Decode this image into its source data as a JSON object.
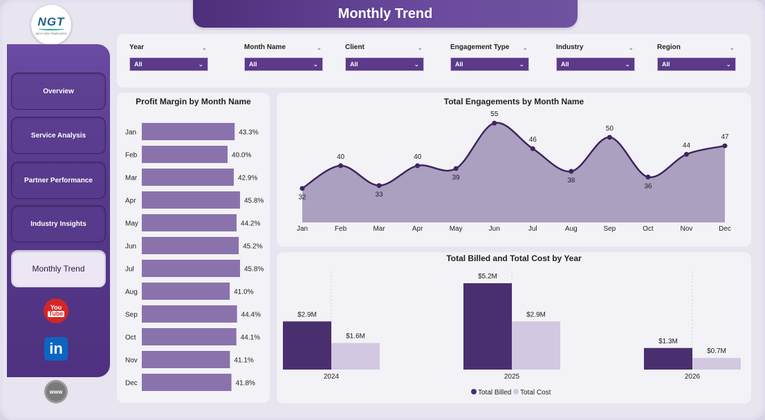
{
  "page_title": "Monthly Trend",
  "logo": {
    "main": "NGT",
    "sub": "NEXT GEN TEMPLATES"
  },
  "sidebar": {
    "items": [
      {
        "label": "Overview"
      },
      {
        "label": "Service Analysis"
      },
      {
        "label": "Partner Performance"
      },
      {
        "label": "Industry Insights"
      },
      {
        "label": "Monthly Trend"
      }
    ],
    "active_index": 4,
    "social": {
      "youtube_top": "You",
      "youtube_bottom": "Tube",
      "linkedin": "in",
      "web": "www"
    }
  },
  "filters": [
    {
      "label": "Year",
      "value": "All"
    },
    {
      "label": "Month Name",
      "value": "All"
    },
    {
      "label": "Client",
      "value": "All"
    },
    {
      "label": "Engagement Type",
      "value": "All"
    },
    {
      "label": "Industry",
      "value": "All"
    },
    {
      "label": "Region",
      "value": "All"
    }
  ],
  "colors": {
    "bar": "#8a73ac",
    "area_fill": "#a89bbe",
    "line": "#3e255f",
    "billed": "#4a2f6e",
    "cost": "#d2c8e1"
  },
  "chart_data": [
    {
      "type": "bar",
      "orientation": "horizontal",
      "title": "Profit Margin by Month Name",
      "categories": [
        "Jan",
        "Feb",
        "Mar",
        "Apr",
        "May",
        "Jun",
        "Jul",
        "Aug",
        "Sep",
        "Oct",
        "Nov",
        "Dec"
      ],
      "values": [
        43.3,
        40.0,
        42.9,
        45.8,
        44.2,
        45.2,
        45.8,
        41.0,
        44.4,
        44.1,
        41.1,
        41.8
      ],
      "labels": [
        "43.3%",
        "40.0%",
        "42.9%",
        "45.8%",
        "44.2%",
        "45.2%",
        "45.8%",
        "41.0%",
        "44.4%",
        "44.1%",
        "41.1%",
        "41.8%"
      ]
    },
    {
      "type": "area",
      "title": "Total Engagements by Month Name",
      "categories": [
        "Jan",
        "Feb",
        "Mar",
        "Apr",
        "May",
        "Jun",
        "Jul",
        "Aug",
        "Sep",
        "Oct",
        "Nov",
        "Dec"
      ],
      "values": [
        32,
        40,
        33,
        40,
        39,
        55,
        46,
        38,
        50,
        36,
        44,
        47
      ]
    },
    {
      "type": "bar",
      "title": "Total Billed and Total Cost by Year",
      "categories": [
        "2024",
        "2025",
        "2026"
      ],
      "series": [
        {
          "name": "Total Billed",
          "values": [
            2.9,
            5.2,
            1.3
          ],
          "labels": [
            "$2.9M",
            "$5.2M",
            "$1.3M"
          ]
        },
        {
          "name": "Total Cost",
          "values": [
            1.6,
            2.9,
            0.7
          ],
          "labels": [
            "$1.6M",
            "$2.9M",
            "$0.7M"
          ]
        }
      ],
      "legend": "bottom"
    }
  ]
}
